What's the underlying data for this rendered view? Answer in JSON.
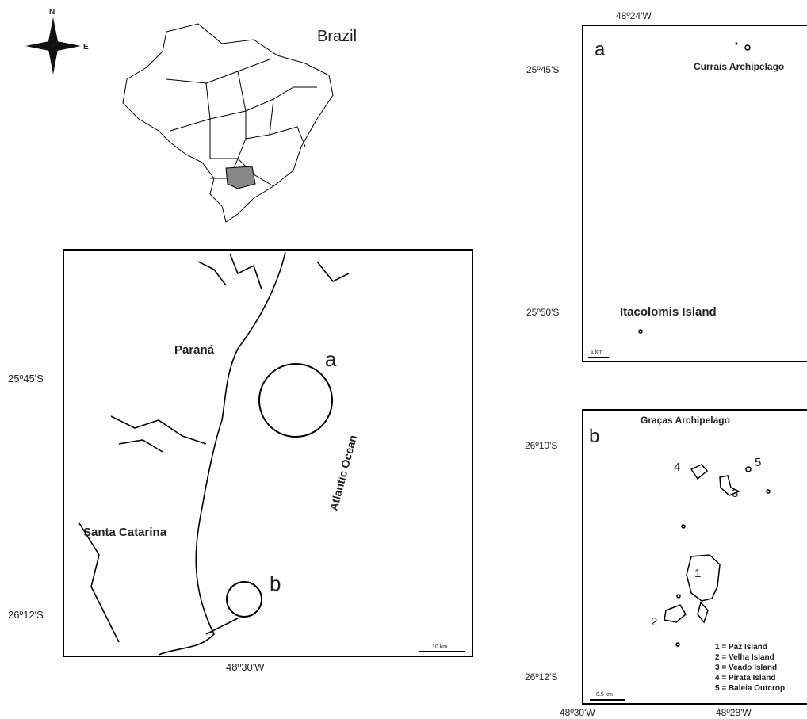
{
  "compass": {
    "north": "N",
    "east": "E"
  },
  "brazil_map": {
    "title": "Brazil"
  },
  "main_map": {
    "state_1": "Paraná",
    "state_2": "Santa Catarina",
    "ocean": "Atlantic Ocean",
    "circle_a": "a",
    "circle_b": "b",
    "lat_labels": [
      "25º45'S",
      "26º12'S"
    ],
    "lon_label": "48º30'W",
    "scale": "10 km"
  },
  "inset_a": {
    "letter": "a",
    "lon_label": "48º24'W",
    "lat_labels": [
      "25º45'S",
      "25º50'S"
    ],
    "labels": [
      "Currais Archipelago",
      "Itacolomis Island"
    ],
    "scale": "1 km"
  },
  "inset_b": {
    "letter": "b",
    "title": "Graças Archipelago",
    "lat_labels": [
      "26º10'S",
      "26º12'S"
    ],
    "lon_labels": [
      "48º30'W",
      "48º28'W"
    ],
    "island_numbers": [
      "1",
      "2",
      "3",
      "4",
      "5"
    ],
    "legend": [
      "1 = Paz Island",
      "2 = Velha Island",
      "3 = Veado Island",
      "4 = Pirata Island",
      "5 = Baleia Outcrop"
    ],
    "scale": "0.5 km"
  }
}
